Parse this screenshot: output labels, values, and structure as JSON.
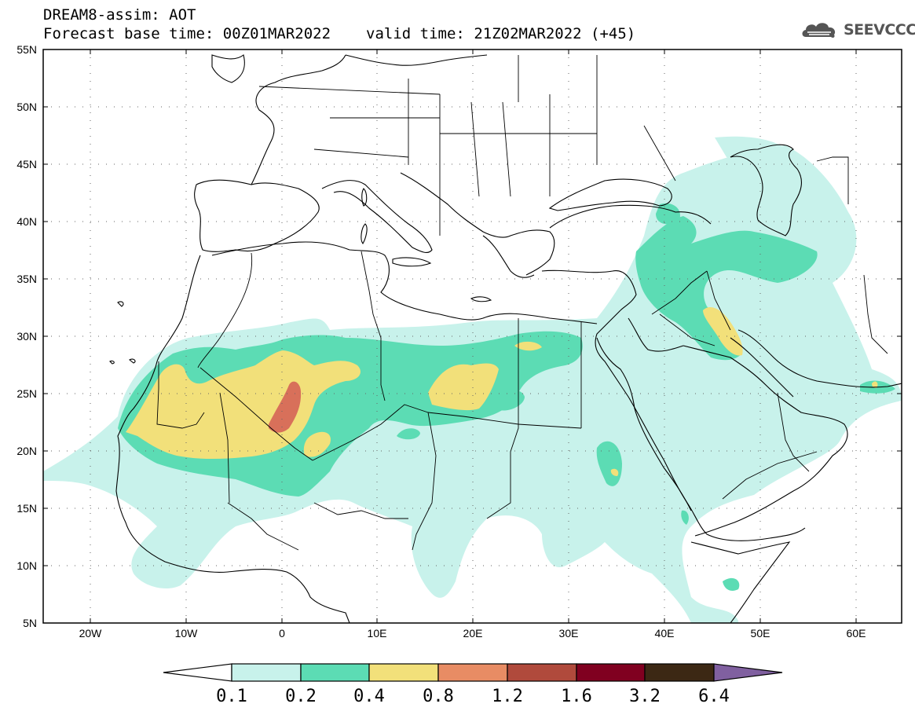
{
  "header": {
    "line1": "DREAM8-assim: AOT",
    "base_time": "Forecast base time: 00Z01MAR2022",
    "valid_time": "valid time: 21Z02MAR2022 (+45)"
  },
  "logo": {
    "text": "SEEVCCC",
    "icon": "cloud-icon"
  },
  "axes": {
    "lat_labels": [
      "55N",
      "50N",
      "45N",
      "40N",
      "35N",
      "30N",
      "25N",
      "20N",
      "15N",
      "10N",
      "5N"
    ],
    "lon_labels": [
      "20W",
      "10W",
      "0",
      "10E",
      "20E",
      "30E",
      "40E",
      "50E",
      "60E"
    ]
  },
  "colorbar": {
    "labels": [
      "0.1",
      "0.2",
      "0.4",
      "0.8",
      "1.2",
      "1.6",
      "3.2",
      "6.4"
    ],
    "colors": [
      "#ffffff",
      "#c8f2eb",
      "#5cdcb4",
      "#f2e07a",
      "#e88c64",
      "#b04a3c",
      "#800020",
      "#3c2814",
      "#8060a0"
    ]
  },
  "field_colors": {
    "light": "#c8f2eb",
    "medium": "#5cdcb4",
    "yellow": "#f2e07a",
    "orange": "#d8705a"
  }
}
